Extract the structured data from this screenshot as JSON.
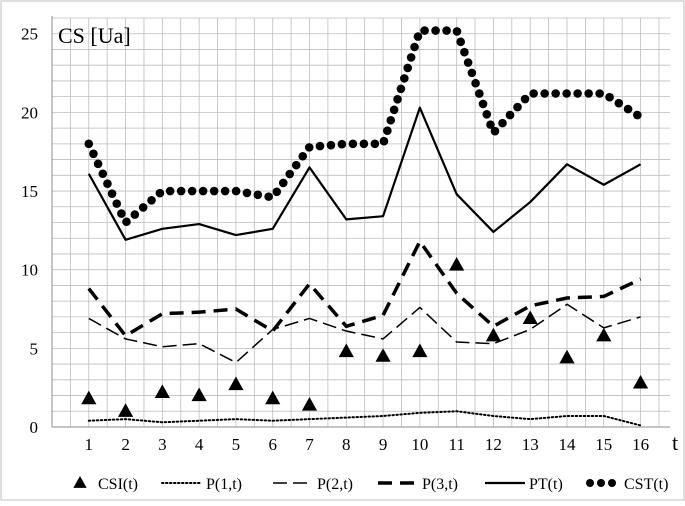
{
  "chart_data": {
    "type": "line",
    "title": "",
    "ylabel": "CS [Ua]",
    "xlabel": "t",
    "x": [
      1,
      2,
      3,
      4,
      5,
      6,
      7,
      8,
      9,
      10,
      11,
      12,
      13,
      14,
      15,
      16
    ],
    "xlim": [
      0,
      16.8
    ],
    "ylim": [
      0,
      26
    ],
    "yticks": [
      0,
      5,
      10,
      15,
      20,
      25
    ],
    "grid": true,
    "legend_position": "bottom",
    "series": [
      {
        "name": "CSI(t)",
        "style": "triangle-markers",
        "values": [
          1.8,
          1.0,
          2.2,
          2.0,
          2.7,
          1.8,
          1.4,
          4.8,
          4.5,
          4.8,
          10.3,
          5.8,
          6.9,
          4.4,
          5.8,
          2.8
        ]
      },
      {
        "name": "P(1,t)",
        "style": "dotted",
        "values": [
          0.4,
          0.5,
          0.3,
          0.4,
          0.5,
          0.4,
          0.5,
          0.6,
          0.7,
          0.9,
          1.0,
          0.7,
          0.5,
          0.7,
          0.7,
          0.1
        ]
      },
      {
        "name": "P(2,t)",
        "style": "dashed-thin",
        "values": [
          6.9,
          5.6,
          5.1,
          5.3,
          4.1,
          6.2,
          6.9,
          6.1,
          5.6,
          7.6,
          5.4,
          5.3,
          6.2,
          7.8,
          6.3,
          7.0
        ]
      },
      {
        "name": "P(3,t)",
        "style": "dashed-thick",
        "values": [
          8.8,
          5.8,
          7.2,
          7.3,
          7.5,
          6.1,
          9.1,
          6.4,
          7.1,
          11.8,
          8.5,
          6.4,
          7.7,
          8.2,
          8.3,
          9.4
        ]
      },
      {
        "name": "PT(t)",
        "style": "solid",
        "values": [
          16.1,
          11.9,
          12.6,
          12.9,
          12.2,
          12.6,
          16.5,
          13.2,
          13.4,
          20.3,
          14.8,
          12.4,
          14.3,
          16.7,
          15.4,
          16.7
        ]
      },
      {
        "name": "CST(t)",
        "style": "large-dots",
        "values": [
          18.0,
          13.0,
          15.0,
          15.0,
          15.0,
          14.6,
          17.8,
          18.0,
          18.0,
          25.2,
          25.2,
          18.7,
          21.2,
          21.2,
          21.2,
          19.7
        ]
      }
    ]
  }
}
